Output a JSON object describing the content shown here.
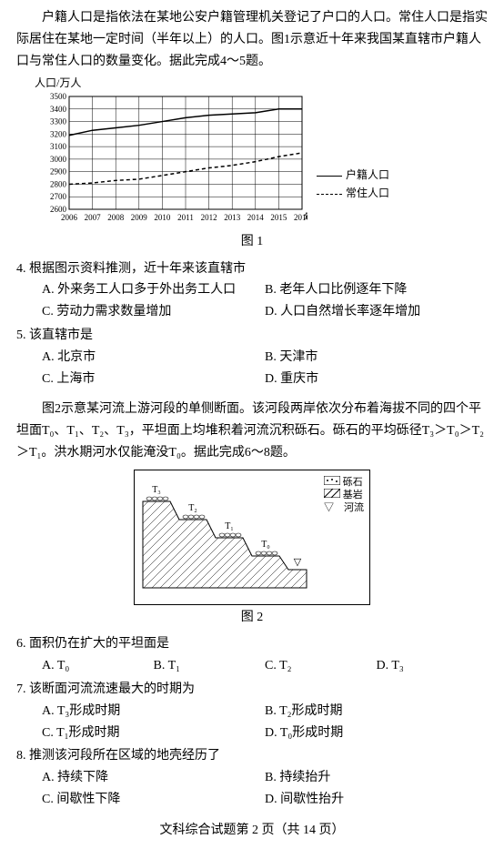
{
  "intro": "户籍人口是指依法在某地公安户籍管理机关登记了户口的人口。常住人口是指实际居住在某地一定时间（半年以上）的人口。图1示意近十年来我国某直辖市户籍人口与常住人口的数量变化。据此完成4～5题。",
  "chart": {
    "type": "line",
    "y_axis_title": "人口/万人",
    "x_axis_title": "年",
    "ylim": [
      2600,
      3500
    ],
    "ytick_step": 100,
    "yticks": [
      2600,
      2700,
      2800,
      2900,
      3000,
      3100,
      3200,
      3300,
      3400,
      3500
    ],
    "years": [
      2006,
      2007,
      2008,
      2009,
      2010,
      2011,
      2012,
      2013,
      2014,
      2015,
      2016
    ],
    "series": [
      {
        "name": "户籍人口",
        "style": "solid",
        "color": "#000000",
        "values": [
          3190,
          3230,
          3250,
          3270,
          3300,
          3330,
          3350,
          3360,
          3370,
          3400,
          3400
        ]
      },
      {
        "name": "常住人口",
        "style": "dashed",
        "color": "#000000",
        "values": [
          2800,
          2810,
          2830,
          2840,
          2870,
          2900,
          2930,
          2950,
          2980,
          3020,
          3050
        ]
      }
    ],
    "background_color": "#ffffff",
    "grid_color": "#000000",
    "label_fontsize": 11
  },
  "fig1_caption": "图 1",
  "q4": {
    "stem": "4. 根据图示资料推测，近十年来该直辖市",
    "opts": {
      "A": "A. 外来务工人口多于外出务工人口",
      "B": "B. 老年人口比例逐年下降",
      "C": "C. 劳动力需求数量增加",
      "D": "D. 人口自然增长率逐年增加"
    }
  },
  "q5": {
    "stem": "5. 该直辖市是",
    "opts": {
      "A": "A. 北京市",
      "B": "B. 天津市",
      "C": "C. 上海市",
      "D": "D. 重庆市"
    }
  },
  "passage2": "图2示意某河流上游河段的单侧断面。该河段两岸依次分布着海拔不同的四个平坦面T₀、T₁、T₂、T₃，平坦面上均堆积着河流沉积砾石。砾石的平均砾径T₃＞T₀＞T₂＞T₁。洪水期河水仅能淹没T₀。据此完成6～8题。",
  "diagram": {
    "type": "cross-section",
    "terraces": [
      "T₃",
      "T₂",
      "T₁",
      "T₀"
    ],
    "legend": {
      "gravel": "砾石",
      "bedrock": "基岩",
      "river": "河流"
    },
    "river_symbol": "▽",
    "colors": {
      "outline": "#000000",
      "background": "#ffffff"
    }
  },
  "fig2_caption": "图 2",
  "q6": {
    "stem": "6. 面积仍在扩大的平坦面是",
    "opts": {
      "A": "A. T₀",
      "B": "B. T₁",
      "C": "C. T₂",
      "D": "D. T₃"
    }
  },
  "q7": {
    "stem": "7. 该断面河流流速最大的时期为",
    "opts": {
      "A": "A. T₃形成时期",
      "B": "B. T₂形成时期",
      "C": "C. T₁形成时期",
      "D": "D. T₀形成时期"
    }
  },
  "q8": {
    "stem": "8. 推测该河段所在区域的地壳经历了",
    "opts": {
      "A": "A. 持续下降",
      "B": "B. 持续抬升",
      "C": "C. 间歇性下降",
      "D": "D. 间歇性抬升"
    }
  },
  "footer": "文科综合试题第 2 页（共 14 页）"
}
